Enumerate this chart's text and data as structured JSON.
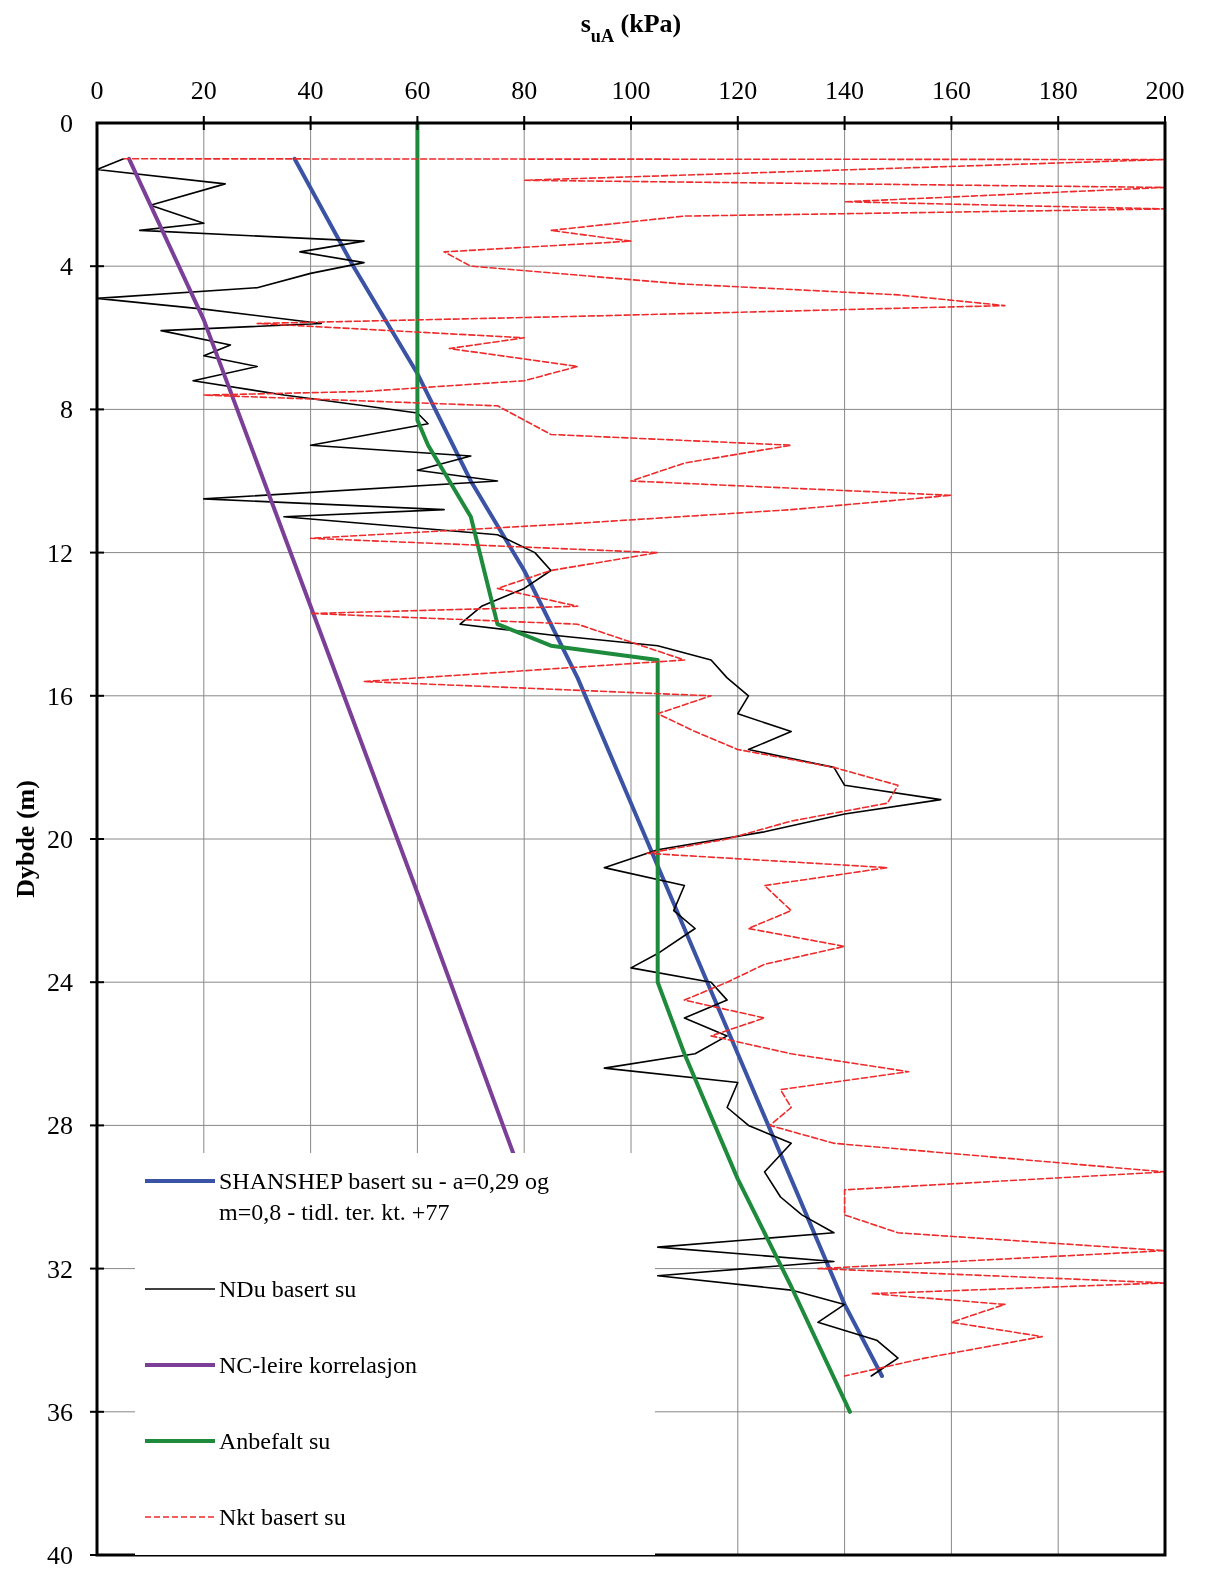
{
  "chart_data": {
    "type": "line",
    "xlabel": "s$_{uA}$ (kPa)",
    "ylabel": "Dybde (m)",
    "xlim": [
      0,
      200
    ],
    "xticks": [
      0,
      20,
      40,
      60,
      80,
      100,
      120,
      140,
      160,
      180,
      200
    ],
    "ylim": [
      40,
      0
    ],
    "yticks": [
      0,
      4,
      8,
      12,
      16,
      20,
      24,
      28,
      32,
      36,
      40
    ],
    "grid": true,
    "legend": "bottom left",
    "series": [
      {
        "name": "SHANSHEP basert su - a=0,29 og m=0,8 - tidl. ter. kt. +77",
        "color": "#3a53a4",
        "line_style": "solid",
        "x": [
          37,
          48,
          60,
          70,
          80,
          90,
          100,
          110,
          120,
          130,
          140,
          147
        ],
        "values": [
          1,
          4,
          7,
          10,
          12.5,
          15.5,
          19,
          22.5,
          26,
          29.5,
          33,
          35
        ]
      },
      {
        "name": "NDu basert su",
        "color": "#000000",
        "line_style": "solid",
        "x": [
          5,
          0,
          24,
          10,
          20,
          8,
          50,
          38,
          50,
          40,
          30,
          0,
          20,
          42,
          12,
          25,
          20,
          30,
          18,
          35,
          50,
          60,
          62,
          40,
          70,
          60,
          75,
          20,
          65,
          35,
          75,
          82,
          85,
          80,
          72,
          68,
          85,
          105,
          115,
          118,
          122,
          120,
          130,
          122,
          138,
          140,
          158,
          140,
          125,
          105,
          95,
          110,
          108,
          112,
          105,
          100,
          115,
          118,
          110,
          118,
          112,
          95,
          120,
          118,
          122,
          130,
          125,
          128,
          132,
          138,
          105,
          138,
          105,
          130,
          140,
          135,
          146,
          150,
          145
        ],
        "values": [
          1,
          1.3,
          1.7,
          2.3,
          2.8,
          3,
          3.3,
          3.6,
          3.9,
          4.2,
          4.6,
          4.9,
          5.2,
          5.6,
          5.8,
          6.2,
          6.5,
          6.8,
          7.2,
          7.6,
          7.9,
          8.1,
          8.4,
          9,
          9.3,
          9.7,
          10,
          10.5,
          10.8,
          11,
          11.5,
          12,
          12.5,
          13,
          13.5,
          14,
          14.3,
          14.6,
          15,
          15.5,
          16,
          16.5,
          17,
          17.5,
          18,
          18.5,
          18.9,
          19.3,
          19.8,
          20.3,
          20.8,
          21.3,
          22,
          22.5,
          23.2,
          23.6,
          24,
          24.5,
          25,
          25.5,
          26,
          26.4,
          26.8,
          27.5,
          28,
          28.5,
          29.3,
          30,
          30.5,
          31,
          31.4,
          31.8,
          32.2,
          32.6,
          33,
          33.5,
          34,
          34.5,
          35
        ]
      },
      {
        "name": "NC-leire korrelasjon",
        "color": "#7b3f98",
        "line_style": "solid",
        "x": [
          6,
          20,
          40,
          60,
          78
        ],
        "values": [
          1,
          5.5,
          13.5,
          21.5,
          28.8
        ]
      },
      {
        "name": "Anbefalt su",
        "color": "#1e8a3c",
        "line_style": "solid",
        "x": [
          60,
          60,
          62,
          70,
          75,
          85,
          105,
          105,
          110,
          120,
          130,
          141
        ],
        "values": [
          0,
          8.3,
          9,
          11,
          14,
          14.6,
          15,
          24,
          26,
          29.5,
          32.5,
          36
        ]
      },
      {
        "name": "Nkt basert su",
        "color": "#ee2a2a",
        "line_style": "dashed",
        "x": [
          5,
          200,
          80,
          200,
          140,
          200,
          110,
          85,
          100,
          65,
          70,
          110,
          150,
          170,
          90,
          30,
          80,
          66,
          90,
          80,
          50,
          20,
          75,
          80,
          85,
          130,
          110,
          100,
          160,
          130,
          88,
          40,
          105,
          85,
          75,
          90,
          40,
          90,
          100,
          110,
          50,
          115,
          105,
          112,
          120,
          138,
          150,
          148,
          130,
          118,
          103,
          148,
          125,
          130,
          122,
          140,
          125,
          118,
          110,
          125,
          115,
          130,
          152,
          128,
          130,
          126,
          138,
          200,
          140,
          140,
          150,
          200,
          135,
          200,
          145,
          170,
          160,
          177,
          155,
          140
        ],
        "values": [
          1,
          1.02,
          1.6,
          1.8,
          2.2,
          2.4,
          2.6,
          3,
          3.3,
          3.6,
          4,
          4.5,
          4.8,
          5.1,
          5.4,
          5.6,
          6,
          6.3,
          6.8,
          7.2,
          7.5,
          7.6,
          7.9,
          8.3,
          8.7,
          9,
          9.5,
          10,
          10.4,
          10.8,
          11.2,
          11.6,
          12,
          12.5,
          13,
          13.5,
          13.7,
          14,
          14.5,
          15,
          15.6,
          16,
          16.5,
          17,
          17.5,
          18,
          18.5,
          19,
          19.5,
          20,
          20.4,
          20.8,
          21.3,
          22,
          22.5,
          23,
          23.5,
          24,
          24.5,
          25,
          25.5,
          26,
          26.5,
          27,
          27.5,
          28,
          28.5,
          29.3,
          29.8,
          30.5,
          31,
          31.5,
          32,
          32.4,
          32.7,
          33,
          33.5,
          33.9,
          34.5,
          35
        ]
      }
    ]
  }
}
